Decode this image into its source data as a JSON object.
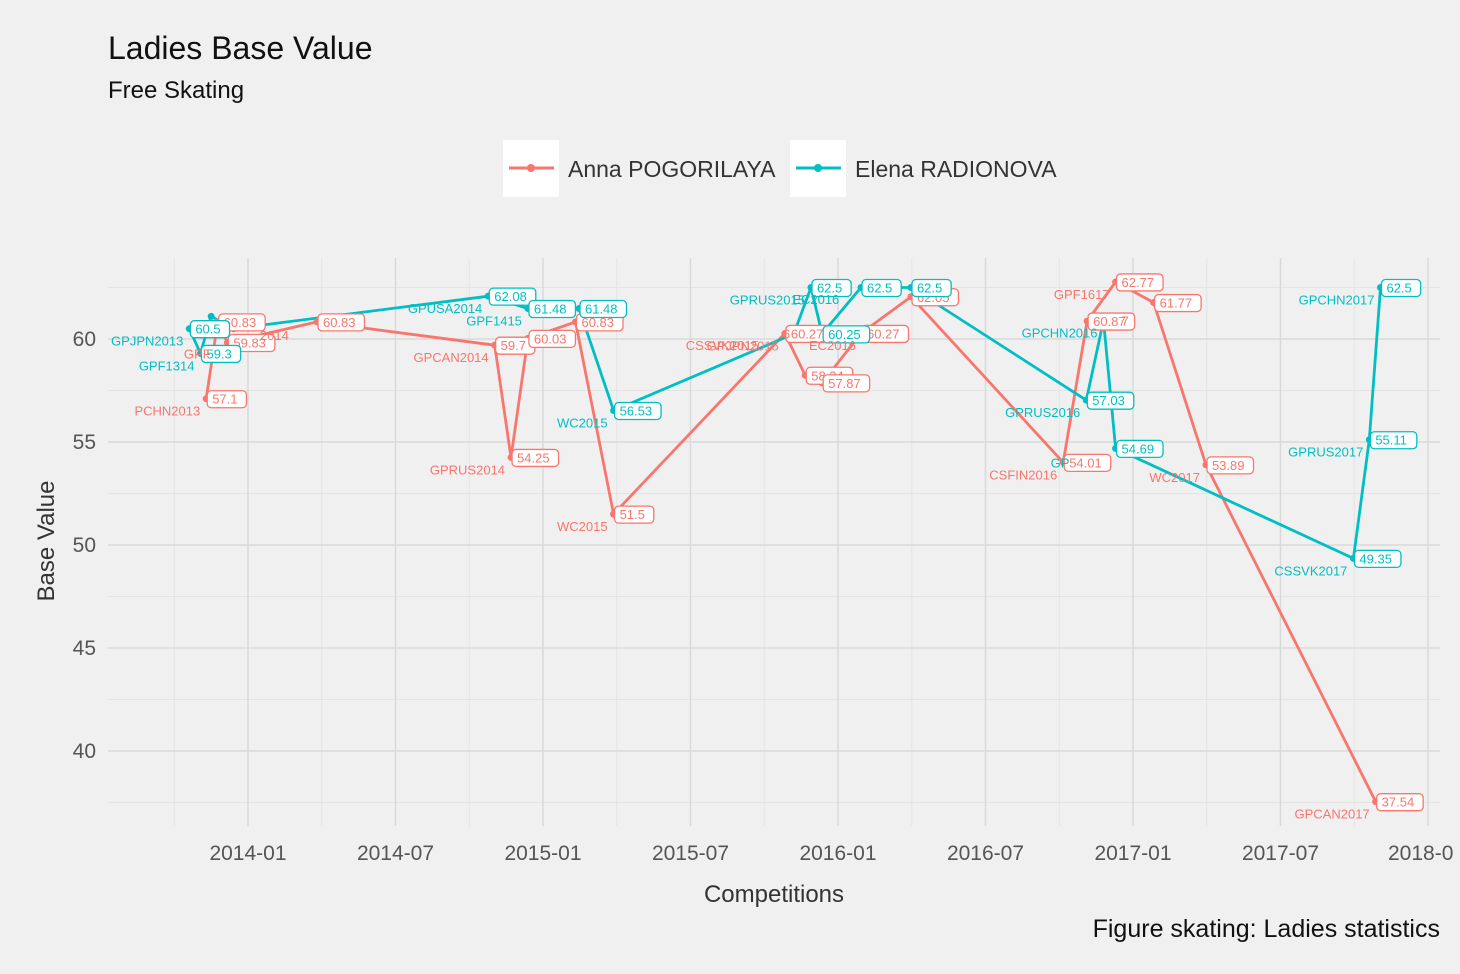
{
  "chart_data": {
    "type": "line",
    "title": "Ladies Base Value",
    "subtitle": "Free Skating",
    "xlabel": "Competitions",
    "ylabel": "Base Value",
    "caption": "Figure skating: Ladies statistics",
    "x_ticks": [
      "2014-01",
      "2014-07",
      "2015-01",
      "2015-07",
      "2016-01",
      "2016-07",
      "2017-01",
      "2017-07",
      "2018-0"
    ],
    "y_ticks": [
      "40",
      "45",
      "50",
      "55",
      "60"
    ],
    "ylim": [
      36.5,
      64.5
    ],
    "grid": true,
    "legend_position": "top",
    "series": [
      {
        "name": "Anna POGORILAYA",
        "color": "#F8766D",
        "points": [
          {
            "x": "2013-11-10",
            "y": 57.1,
            "event": "PCHN2013",
            "value_label": "57.1"
          },
          {
            "x": "2013-11-24",
            "y": 60.83,
            "event": "",
            "value_label": "60.83"
          },
          {
            "x": "2013-12-06",
            "y": 59.83,
            "event": "",
            "value_label": "59.83"
          },
          {
            "x": "2014-03-26",
            "y": 60.83,
            "event": "",
            "value_label": "60.83"
          },
          {
            "x": "2014-11-02",
            "y": 59.7,
            "event": "GPCAN2014",
            "value_label": "59.7"
          },
          {
            "x": "2014-11-22",
            "y": 54.25,
            "event": "GPRUS2014",
            "value_label": "54.25"
          },
          {
            "x": "2014-12-13",
            "y": 60.03,
            "event": "",
            "value_label": "60.03"
          },
          {
            "x": "2015-02-10",
            "y": 60.83,
            "event": "",
            "value_label": "60.83"
          },
          {
            "x": "2015-03-28",
            "y": 51.5,
            "event": "WC2015",
            "value_label": "51.5"
          },
          {
            "x": "2015-10-27",
            "y": 60.27,
            "event": "GPJPN2015",
            "value_label": "60.27"
          },
          {
            "x": "2015-11-21",
            "y": 58.24,
            "event": "",
            "value_label": "58.24"
          },
          {
            "x": "2015-12-12",
            "y": 57.87,
            "event": "",
            "value_label": "57.87"
          },
          {
            "x": "2016-01-30",
            "y": 60.27,
            "event": "",
            "value_label": "60.27"
          },
          {
            "x": "2016-03-31",
            "y": 62.05,
            "event": "",
            "value_label": "62.05"
          },
          {
            "x": "2016-10-06",
            "y": 54.01,
            "event": "CSFIN2016",
            "value_label": "54.01"
          },
          {
            "x": "2016-11-05",
            "y": 60.87,
            "event": "",
            "value_label": "60.87"
          },
          {
            "x": "2016-12-10",
            "y": 62.77,
            "event": "GPF1617",
            "value_label": "62.77"
          },
          {
            "x": "2017-01-27",
            "y": 61.77,
            "event": "",
            "value_label": "61.77"
          },
          {
            "x": "2017-03-31",
            "y": 53.89,
            "event": "WC2017",
            "value_label": "53.89"
          },
          {
            "x": "2017-10-28",
            "y": 37.54,
            "event": "GPCAN2017",
            "value_label": "37.54"
          }
        ]
      },
      {
        "name": "Elena RADIONOVA",
        "color": "#00BFC4",
        "points": [
          {
            "x": "2013-10-20",
            "y": 60.5,
            "event": "GPJPN2013",
            "value_label": "60.5"
          },
          {
            "x": "2013-11-03",
            "y": 59.3,
            "event": "GPF1314",
            "value_label": "59.3"
          },
          {
            "x": "2013-11-16",
            "y": 61.1,
            "event": "",
            "value_label": ""
          },
          {
            "x": "2013-12-14",
            "y": 60.5,
            "event": "",
            "value_label": ""
          },
          {
            "x": "2014-10-25",
            "y": 62.08,
            "event": "GPUSA2014",
            "value_label": "62.08"
          },
          {
            "x": "2014-12-13",
            "y": 61.48,
            "event": "GPF1415",
            "value_label": "61.48"
          },
          {
            "x": "2015-02-14",
            "y": 61.48,
            "event": "",
            "value_label": "61.48"
          },
          {
            "x": "2015-03-28",
            "y": 56.53,
            "event": "WC2015",
            "value_label": "56.53"
          },
          {
            "x": "2015-11-07",
            "y": 60.25,
            "event": "",
            "value_label": ""
          },
          {
            "x": "2015-11-28",
            "y": 62.5,
            "event": "GPRUS2015",
            "value_label": "62.5"
          },
          {
            "x": "2015-12-12",
            "y": 60.25,
            "event": "",
            "value_label": "60.25"
          },
          {
            "x": "2016-01-30",
            "y": 62.5,
            "event": "",
            "value_label": "62.5"
          },
          {
            "x": "2016-03-31",
            "y": 62.5,
            "event": "",
            "value_label": "62.5"
          },
          {
            "x": "2016-11-04",
            "y": 57.03,
            "event": "GPRUS2016",
            "value_label": "57.03"
          },
          {
            "x": "2016-11-25",
            "y": 60.9,
            "event": "GPCHN2016",
            "value_label": ""
          },
          {
            "x": "2016-12-10",
            "y": 54.69,
            "event": "",
            "value_label": "54.69"
          },
          {
            "x": "2017-09-30",
            "y": 49.35,
            "event": "CSSVK2017",
            "value_label": "49.35"
          },
          {
            "x": "2017-10-20",
            "y": 55.11,
            "event": "GPRUS2017",
            "value_label": "55.11"
          },
          {
            "x": "2017-11-03",
            "y": 62.5,
            "event": "GPCHN2017",
            "value_label": "62.5"
          }
        ]
      }
    ],
    "extra_labels": [
      {
        "text": "GPF",
        "color": "#F8766D",
        "x": "2013-10-30",
        "y": 59.3
      },
      {
        "text": "2014",
        "color": "#F8766D",
        "x": "2014-02-03",
        "y": 60.2
      },
      {
        "text": "CSSVK2015",
        "color": "#F8766D",
        "x": "2015-08-10",
        "y": 59.7
      },
      {
        "text": "EC2016",
        "color": "#F8766D",
        "x": "2015-12-25",
        "y": 59.7
      },
      {
        "text": "6",
        "color": "#F8766D",
        "x": "2015-10-29",
        "y": 60.27
      },
      {
        "text": "EC2016",
        "color": "#00BFC4",
        "x": "2015-12-04",
        "y": 61.95
      },
      {
        "text": "GP",
        "color": "#00BFC4",
        "x": "2016-10-02",
        "y": 54.0
      },
      {
        "text": "7",
        "color": "#F8766D",
        "x": "2016-12-22",
        "y": 60.9
      }
    ]
  }
}
